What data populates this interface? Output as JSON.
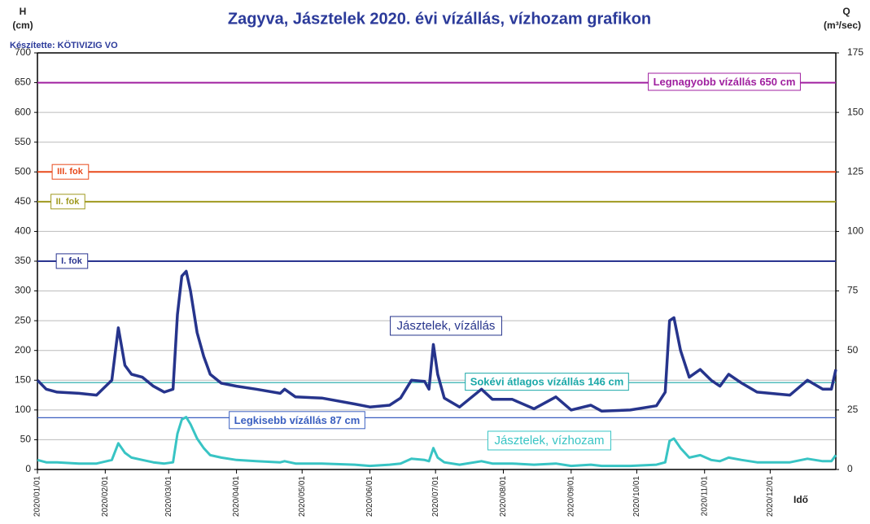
{
  "chart_data": {
    "type": "line",
    "title": "Zagyva, Jásztelek 2020. évi vízállás, vízhozam grafikon",
    "y_label_symbol": "H",
    "y_label_unit": "(cm)",
    "y2_label_symbol": "Q",
    "y2_label_unit": "(m³/sec)",
    "credit": "Készítette: KÖTIVIZIG VO",
    "x_label": "Idő",
    "xlim": [
      "2020/01/01",
      "2020/12/31"
    ],
    "xticks": [
      "2020/01/01",
      "2020/02/01",
      "2020/03/01",
      "2020/04/01",
      "2020/05/01",
      "2020/06/01",
      "2020/07/01",
      "2020/08/01",
      "2020/09/01",
      "2020/10/01",
      "2020/11/01",
      "2020/12/01"
    ],
    "ylim": [
      0,
      700
    ],
    "yticks": [
      0,
      50,
      100,
      150,
      200,
      250,
      300,
      350,
      400,
      450,
      500,
      550,
      600,
      650,
      700
    ],
    "y2lim": [
      0,
      175
    ],
    "y2ticks": [
      0,
      25,
      50,
      75,
      100,
      125,
      150,
      175
    ],
    "grid": true,
    "x": [
      "2020/01/01",
      "2020/01/05",
      "2020/01/10",
      "2020/01/20",
      "2020/01/28",
      "2020/02/04",
      "2020/02/07",
      "2020/02/10",
      "2020/02/13",
      "2020/02/18",
      "2020/02/23",
      "2020/02/28",
      "2020/03/03",
      "2020/03/05",
      "2020/03/07",
      "2020/03/09",
      "2020/03/11",
      "2020/03/14",
      "2020/03/17",
      "2020/03/20",
      "2020/03/25",
      "2020/04/01",
      "2020/04/10",
      "2020/04/21",
      "2020/04/23",
      "2020/04/28",
      "2020/05/10",
      "2020/05/25",
      "2020/06/01",
      "2020/06/10",
      "2020/06/15",
      "2020/06/20",
      "2020/06/26",
      "2020/06/28",
      "2020/06/30",
      "2020/07/02",
      "2020/07/05",
      "2020/07/12",
      "2020/07/22",
      "2020/07/27",
      "2020/08/05",
      "2020/08/15",
      "2020/08/25",
      "2020/09/01",
      "2020/09/10",
      "2020/09/15",
      "2020/09/28",
      "2020/10/10",
      "2020/10/14",
      "2020/10/16",
      "2020/10/18",
      "2020/10/21",
      "2020/10/25",
      "2020/10/30",
      "2020/11/04",
      "2020/11/08",
      "2020/11/12",
      "2020/11/18",
      "2020/11/25",
      "2020/12/01",
      "2020/12/10",
      "2020/12/18",
      "2020/12/25",
      "2020/12/29",
      "2020/12/31"
    ],
    "series": [
      {
        "name": "Jásztelek, vízállás",
        "color": "#26348c",
        "axis": "y",
        "values": [
          150,
          135,
          130,
          128,
          125,
          150,
          238,
          175,
          160,
          155,
          140,
          130,
          135,
          260,
          325,
          333,
          300,
          230,
          190,
          160,
          145,
          140,
          135,
          128,
          135,
          122,
          120,
          110,
          105,
          108,
          120,
          150,
          148,
          135,
          210,
          160,
          120,
          105,
          135,
          118,
          118,
          102,
          122,
          100,
          108,
          98,
          100,
          107,
          130,
          250,
          255,
          200,
          155,
          168,
          150,
          140,
          160,
          145,
          130,
          128,
          125,
          150,
          135,
          135,
          168
        ]
      },
      {
        "name": "Jásztelek, vízhozam",
        "color": "#38c4c4",
        "axis": "y2",
        "values": [
          4,
          3,
          3,
          2.5,
          2.5,
          4,
          11,
          7,
          5,
          4,
          3,
          2.5,
          3,
          15,
          21,
          22,
          19,
          13,
          9,
          6,
          5,
          4,
          3.5,
          3,
          3.5,
          2.5,
          2.5,
          2,
          1.5,
          2,
          2.5,
          4.5,
          4,
          3.5,
          9,
          5,
          3,
          2,
          3.5,
          2.5,
          2.5,
          2,
          2.5,
          1.5,
          2,
          1.5,
          1.5,
          2,
          3,
          12,
          13,
          9,
          5,
          6,
          4,
          3.5,
          5,
          4,
          3,
          3,
          3,
          4.5,
          3.5,
          3.5,
          6
        ]
      }
    ],
    "reference_lines": [
      {
        "label": "Legnagyobb vízállás 650 cm",
        "value": 650,
        "color": "#a020a0"
      },
      {
        "label": "III. fok",
        "value": 500,
        "color": "#e84a1c"
      },
      {
        "label": "II. fok",
        "value": 450,
        "color": "#a09a20"
      },
      {
        "label": "I. fok",
        "value": 350,
        "color": "#2a3590"
      },
      {
        "label": "Sokévi átlagos vízállás 146 cm",
        "value": 146,
        "color": "#1aa8a8"
      },
      {
        "label": "Legkisebb vízállás 87 cm",
        "value": 87,
        "color": "#3a5fc0"
      }
    ]
  }
}
